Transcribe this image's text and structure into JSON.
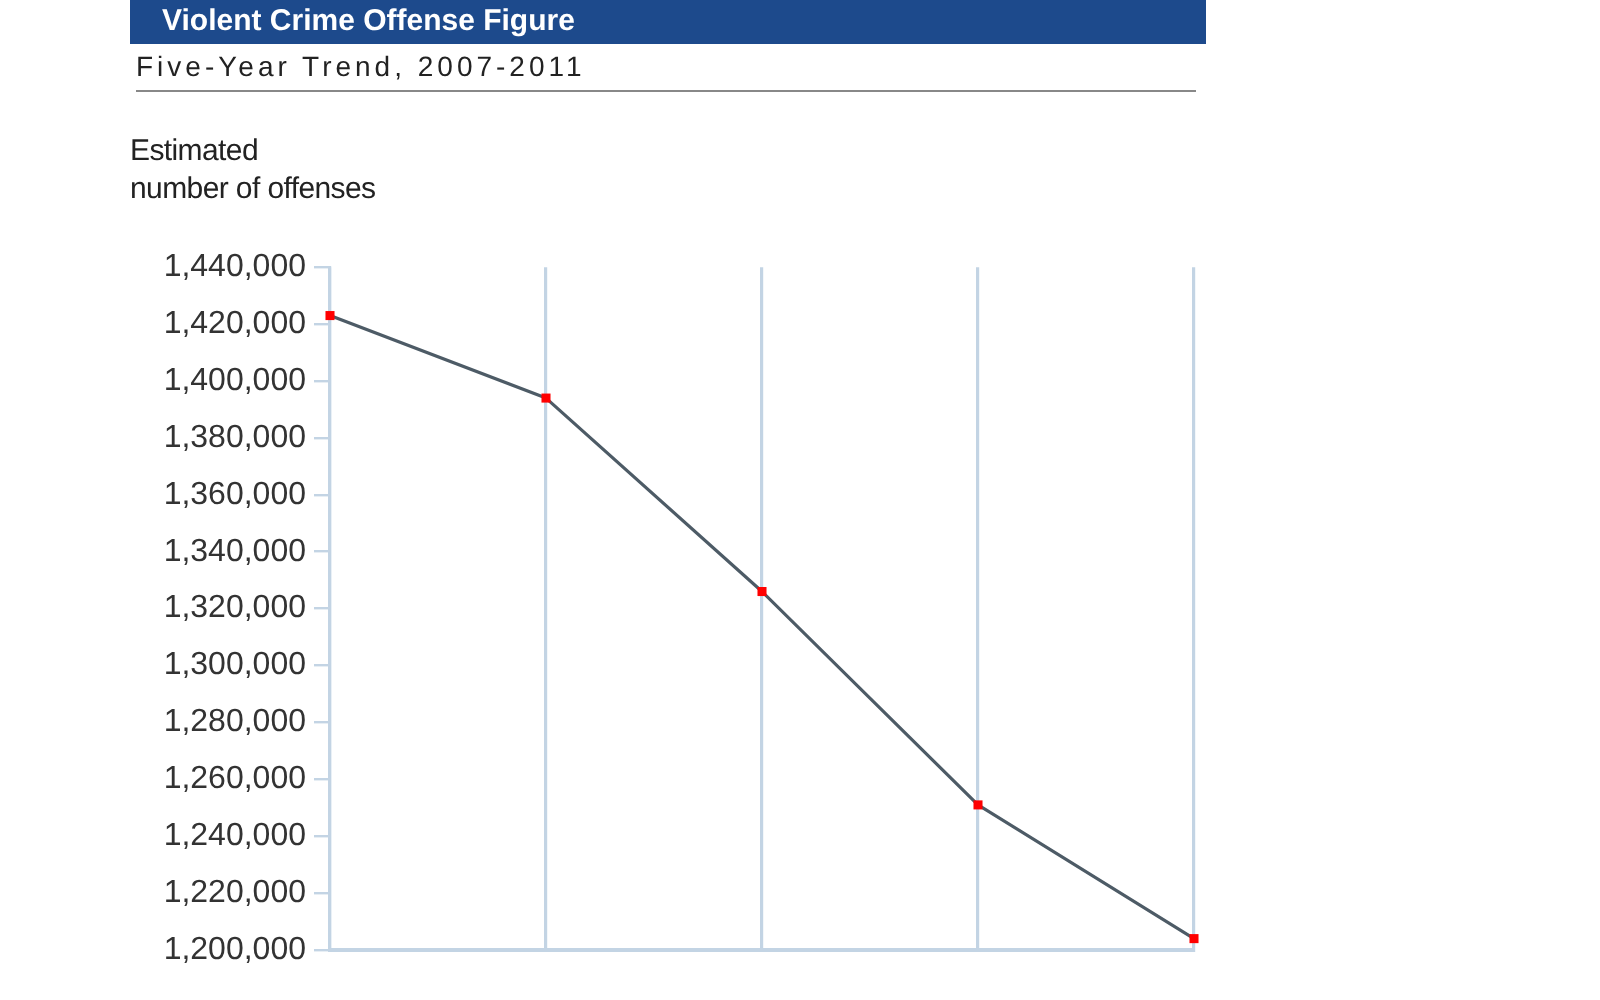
{
  "chart_data": {
    "type": "line",
    "title": "Violent Crime Offense Figure",
    "subtitle": "Five-Year Trend, 2007-2011",
    "ylabel": "Estimated\nnumber of offenses",
    "categories": [
      null,
      null,
      null,
      null,
      null
    ],
    "series": [
      {
        "color": "#4d5b66",
        "colors": [
          "#ff0000",
          "#ff0000",
          "#ff0000",
          "#ff0000",
          "#ff0000"
        ],
        "values": [
          1423000,
          1394000,
          1326000,
          1251000,
          1204000
        ]
      }
    ],
    "ylim": [
      1200000,
      1440000
    ],
    "yticks": [
      {
        "value": 1200000,
        "label": "1,200,000"
      },
      {
        "value": 1220000,
        "label": "1,220,000"
      },
      {
        "value": 1240000,
        "label": "1,240,000"
      },
      {
        "value": 1260000,
        "label": "1,260,000"
      },
      {
        "value": 1280000,
        "label": "1,280,000"
      },
      {
        "value": 1300000,
        "label": "1,300,000"
      },
      {
        "value": 1320000,
        "label": "1,320,000"
      },
      {
        "value": 1340000,
        "label": "1,340,000"
      },
      {
        "value": 1360000,
        "label": "1,360,000"
      },
      {
        "value": 1380000,
        "label": "1,380,000"
      },
      {
        "value": 1400000,
        "label": "1,400,000"
      },
      {
        "value": 1420000,
        "label": "1,420,000"
      },
      {
        "value": 1440000,
        "label": "1,440,000"
      }
    ],
    "grid": "x",
    "tick_labels": "y",
    "marker": "square",
    "line_style": "solid"
  }
}
